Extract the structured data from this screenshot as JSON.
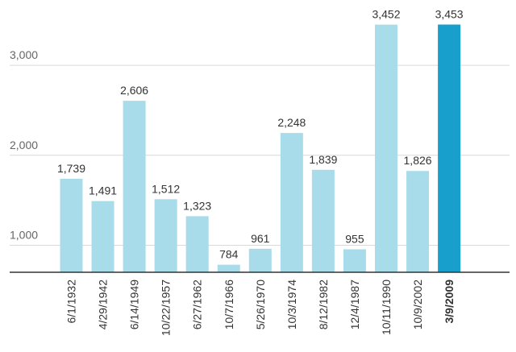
{
  "colors": {
    "bar": "#a8dcea",
    "bar_highlight": "#189fcc",
    "grid": "#d9d9d9",
    "axis": "#333333"
  },
  "chart_data": {
    "type": "bar",
    "title": "",
    "xlabel": "",
    "ylabel": "",
    "ylim": [
      700,
      3600
    ],
    "yticks": [
      1000,
      2000,
      3000
    ],
    "ytick_labels": [
      "1,000",
      "2,000",
      "3,000"
    ],
    "grid": true,
    "legend": "none",
    "categories": [
      "6/1/1932",
      "4/29/1942",
      "6/14/1949",
      "10/22/1957",
      "6/27/1962",
      "10/7/1966",
      "5/26/1970",
      "10/3/1974",
      "8/12/1982",
      "12/4/1987",
      "10/11/1990",
      "10/9/2002",
      "3/9/2009"
    ],
    "values": [
      1739,
      1491,
      2606,
      1512,
      1323,
      784,
      961,
      2248,
      1839,
      955,
      3452,
      1826,
      3453
    ],
    "value_labels": [
      "1,739",
      "1,491",
      "2,606",
      "1,512",
      "1,323",
      "784",
      "961",
      "2,248",
      "1,839",
      "955",
      "3,452",
      "1,826",
      "3,453"
    ],
    "highlight_index": 12
  }
}
